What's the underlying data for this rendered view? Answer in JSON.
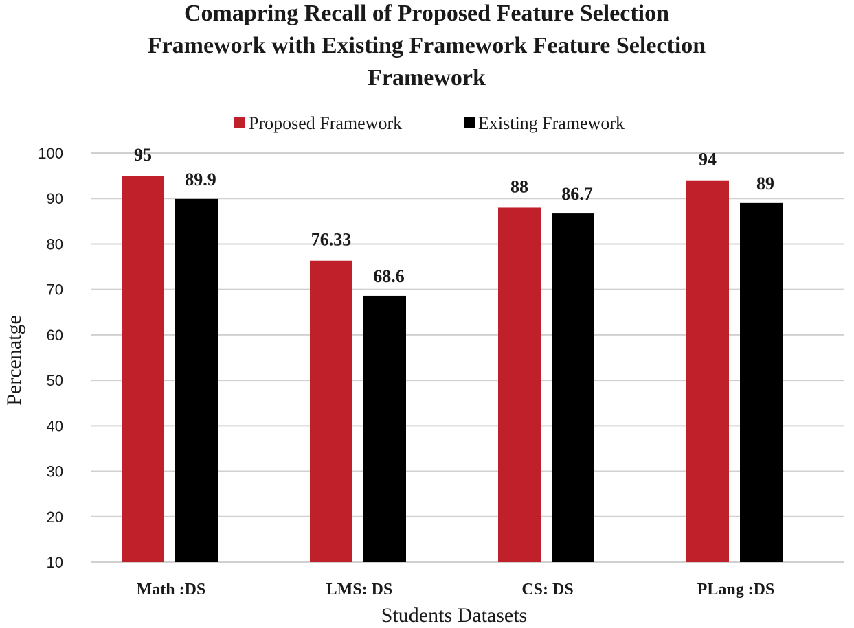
{
  "chart_data": {
    "type": "bar",
    "title_lines": [
      "Comapring Recall of Proposed Feature Selection",
      "Framework with Existing Framework Feature Selection",
      "Framework"
    ],
    "xlabel": "Students Datasets",
    "ylabel": "Percenatge",
    "ylim": [
      10,
      100
    ],
    "yticks": [
      "10",
      "20",
      "30",
      "40",
      "50",
      "60",
      "70",
      "80",
      "90",
      "100"
    ],
    "grid": true,
    "legend_position": "top-center",
    "categories": [
      "Math :DS",
      "LMS: DS",
      "CS: DS",
      "PLang :DS"
    ],
    "series": [
      {
        "name": "Proposed Framework",
        "color": "#c0202a",
        "values": [
          95,
          76.33,
          88,
          94
        ],
        "labels": [
          "95",
          "76.33",
          "88",
          "94"
        ]
      },
      {
        "name": "Existing Framework",
        "color": "#000000",
        "values": [
          89.9,
          68.6,
          86.7,
          89
        ],
        "labels": [
          "89.9",
          "68.6",
          "86.7",
          "89"
        ]
      }
    ]
  }
}
